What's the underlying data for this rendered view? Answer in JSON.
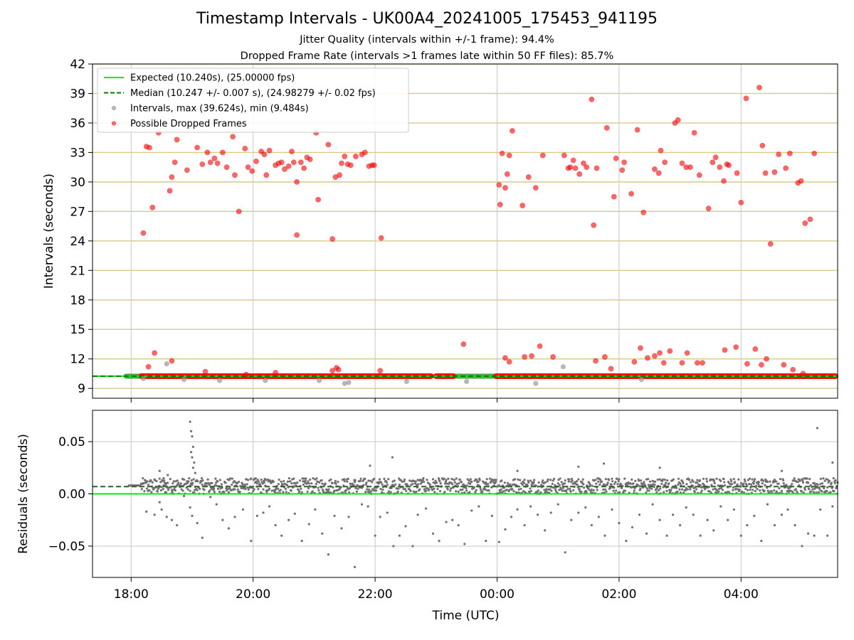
{
  "figure": {
    "title": "Timestamp Intervals - UK00A4_20241005_175453_941195",
    "subtitle_1": "Jitter Quality (intervals within +/-1 frame): 94.4%",
    "subtitle_2": "Dropped Frame Rate (intervals >1 frames late within 50 FF files): 85.7%"
  },
  "colors": {
    "expected": "#00ee00",
    "median": "#008000",
    "intervals": "#999999",
    "dropped": "#ff0000",
    "residual_points": "#707070",
    "hlines": "#d6c98a",
    "grid": "#c8c8c8"
  },
  "chart_data": [
    {
      "type": "scatter",
      "ylabel": "Intervals (seconds)",
      "ylim": [
        8.0,
        42.0
      ],
      "yticks": [
        9,
        12,
        15,
        18,
        21,
        24,
        27,
        30,
        33,
        36,
        39,
        42
      ],
      "x_range": [
        "17:22",
        "05:35"
      ],
      "xticks": [
        "18:00",
        "20:00",
        "22:00",
        "00:00",
        "02:00",
        "04:00"
      ],
      "grid": true,
      "legend_position": "upper left",
      "legend": [
        {
          "label": "Expected (10.240s), (25.00000 fps)",
          "style": "line"
        },
        {
          "label": "Median (10.247 +/- 0.007 s), (24.98279 +/- 0.02 fps)",
          "style": "dashed"
        },
        {
          "label": "Intervals, max (39.624s), min (9.484s)",
          "style": "marker-gray"
        },
        {
          "label": "Possible Dropped Frames",
          "style": "marker-red"
        }
      ],
      "expected": 10.24,
      "median": 10.247,
      "baseline_dropped_segments": [
        [
          "18:10",
          "22:55"
        ],
        [
          "23:00",
          "23:17"
        ],
        [
          "23:59",
          "05:33"
        ]
      ],
      "baseline_normal_segments": [
        [
          "17:55",
          "18:12"
        ],
        [
          "23:17",
          "23:58"
        ]
      ],
      "dropped_frames": [
        [
          "18:12",
          24.8
        ],
        [
          "18:15",
          33.6
        ],
        [
          "18:18",
          33.5
        ],
        [
          "18:21",
          27.4
        ],
        [
          "18:17",
          11.2
        ],
        [
          "18:23",
          12.6
        ],
        [
          "18:27",
          35.0
        ],
        [
          "18:38",
          29.1
        ],
        [
          "18:40",
          30.5
        ],
        [
          "18:43",
          32.0
        ],
        [
          "18:45",
          34.3
        ],
        [
          "18:40",
          11.8
        ],
        [
          "18:55",
          31.2
        ],
        [
          "19:05",
          33.5
        ],
        [
          "19:10",
          31.8
        ],
        [
          "19:15",
          33.0
        ],
        [
          "19:18",
          32.0
        ],
        [
          "19:22",
          32.4
        ],
        [
          "19:25",
          31.9
        ],
        [
          "19:30",
          33.0
        ],
        [
          "19:34",
          31.5
        ],
        [
          "19:40",
          34.6
        ],
        [
          "19:42",
          30.7
        ],
        [
          "19:46",
          27.0
        ],
        [
          "19:52",
          33.4
        ],
        [
          "19:55",
          31.5
        ],
        [
          "19:59",
          31.1
        ],
        [
          "20:03",
          32.1
        ],
        [
          "20:08",
          33.1
        ],
        [
          "20:11",
          32.8
        ],
        [
          "20:13",
          30.7
        ],
        [
          "20:16",
          33.2
        ],
        [
          "20:22",
          31.7
        ],
        [
          "20:25",
          31.9
        ],
        [
          "20:28",
          32.0
        ],
        [
          "20:31",
          31.3
        ],
        [
          "20:35",
          31.6
        ],
        [
          "20:38",
          33.1
        ],
        [
          "20:40",
          32.0
        ],
        [
          "20:43",
          30.0
        ],
        [
          "20:47",
          32.0
        ],
        [
          "20:50",
          31.4
        ],
        [
          "20:53",
          32.5
        ],
        [
          "20:56",
          32.3
        ],
        [
          "21:04",
          28.2
        ],
        [
          "21:02",
          35.0
        ],
        [
          "21:14",
          33.8
        ],
        [
          "21:21",
          30.5
        ],
        [
          "21:25",
          30.7
        ],
        [
          "21:27",
          31.9
        ],
        [
          "21:30",
          32.6
        ],
        [
          "21:33",
          31.8
        ],
        [
          "21:36",
          31.7
        ],
        [
          "21:41",
          32.6
        ],
        [
          "21:47",
          32.8
        ],
        [
          "21:50",
          33.0
        ],
        [
          "21:54",
          31.6
        ],
        [
          "21:57",
          31.7
        ],
        [
          "21:59",
          31.7
        ],
        [
          "22:06",
          24.3
        ],
        [
          "21:18",
          24.2
        ],
        [
          "19:13",
          10.7
        ],
        [
          "19:53",
          10.4
        ],
        [
          "20:22",
          10.6
        ],
        [
          "21:18",
          10.8
        ],
        [
          "21:22",
          11.1
        ],
        [
          "21:24",
          10.9
        ],
        [
          "22:05",
          10.8
        ],
        [
          "23:27",
          13.5
        ],
        [
          "20:43",
          24.6
        ],
        [
          "00:02",
          29.7
        ],
        [
          "00:03",
          27.7
        ],
        [
          "00:05",
          32.9
        ],
        [
          "00:08",
          29.4
        ],
        [
          "00:10",
          30.8
        ],
        [
          "00:12",
          32.7
        ],
        [
          "00:15",
          35.2
        ],
        [
          "00:25",
          27.6
        ],
        [
          "00:31",
          30.5
        ],
        [
          "00:38",
          29.4
        ],
        [
          "00:45",
          32.7
        ],
        [
          "01:06",
          32.7
        ],
        [
          "01:10",
          31.4
        ],
        [
          "01:12",
          31.5
        ],
        [
          "01:15",
          32.2
        ],
        [
          "01:17",
          31.4
        ],
        [
          "01:21",
          30.8
        ],
        [
          "01:25",
          31.9
        ],
        [
          "01:28",
          31.5
        ],
        [
          "01:33",
          38.4
        ],
        [
          "01:35",
          25.6
        ],
        [
          "01:38",
          31.4
        ],
        [
          "01:48",
          35.5
        ],
        [
          "01:55",
          28.5
        ],
        [
          "01:57",
          32.4
        ],
        [
          "02:03",
          31.2
        ],
        [
          "02:05",
          32.0
        ],
        [
          "02:12",
          28.8
        ],
        [
          "02:18",
          35.3
        ],
        [
          "02:24",
          26.9
        ],
        [
          "02:35",
          31.3
        ],
        [
          "02:39",
          30.9
        ],
        [
          "02:41",
          33.2
        ],
        [
          "02:45",
          32.0
        ],
        [
          "02:55",
          36.0
        ],
        [
          "02:58",
          36.3
        ],
        [
          "03:02",
          31.9
        ],
        [
          "03:06",
          31.5
        ],
        [
          "03:10",
          31.5
        ],
        [
          "03:14",
          35.0
        ],
        [
          "03:19",
          30.7
        ],
        [
          "03:28",
          27.3
        ],
        [
          "03:32",
          32.0
        ],
        [
          "03:35",
          32.5
        ],
        [
          "03:39",
          31.5
        ],
        [
          "03:43",
          30.1
        ],
        [
          "03:46",
          31.8
        ],
        [
          "03:48",
          31.7
        ],
        [
          "03:56",
          30.9
        ],
        [
          "04:00",
          27.9
        ],
        [
          "04:05",
          38.5
        ],
        [
          "04:18",
          39.6
        ],
        [
          "04:21",
          33.7
        ],
        [
          "04:24",
          30.9
        ],
        [
          "04:29",
          23.7
        ],
        [
          "04:33",
          31.0
        ],
        [
          "04:37",
          32.8
        ],
        [
          "04:44",
          31.4
        ],
        [
          "04:48",
          32.9
        ],
        [
          "04:56",
          29.9
        ],
        [
          "04:59",
          30.1
        ],
        [
          "05:12",
          32.9
        ],
        [
          "05:08",
          26.2
        ],
        [
          "05:03",
          25.8
        ],
        [
          "00:08",
          12.1
        ],
        [
          "00:12",
          11.7
        ],
        [
          "00:27",
          12.2
        ],
        [
          "00:34",
          12.3
        ],
        [
          "00:42",
          13.3
        ],
        [
          "00:55",
          12.2
        ],
        [
          "01:37",
          11.8
        ],
        [
          "01:46",
          12.2
        ],
        [
          "01:52",
          11.0
        ],
        [
          "02:15",
          11.7
        ],
        [
          "02:21",
          13.1
        ],
        [
          "02:28",
          12.1
        ],
        [
          "02:35",
          12.3
        ],
        [
          "02:40",
          12.6
        ],
        [
          "02:44",
          11.6
        ],
        [
          "02:50",
          12.8
        ],
        [
          "03:02",
          11.6
        ],
        [
          "03:07",
          12.6
        ],
        [
          "03:17",
          11.6
        ],
        [
          "03:22",
          11.6
        ],
        [
          "03:44",
          12.9
        ],
        [
          "03:55",
          13.2
        ],
        [
          "04:06",
          11.5
        ],
        [
          "04:14",
          13.0
        ],
        [
          "04:20",
          11.4
        ],
        [
          "04:25",
          12.0
        ],
        [
          "04:42",
          11.4
        ],
        [
          "04:51",
          10.9
        ],
        [
          "05:01",
          10.5
        ]
      ],
      "normal_outliers": [
        [
          "18:12",
          10.0
        ],
        [
          "18:35",
          11.5
        ],
        [
          "18:52",
          9.9
        ],
        [
          "19:27",
          9.8
        ],
        [
          "20:12",
          9.8
        ],
        [
          "21:05",
          9.8
        ],
        [
          "21:30",
          9.5
        ],
        [
          "21:34",
          9.6
        ],
        [
          "22:31",
          9.7
        ],
        [
          "23:30",
          9.7
        ],
        [
          "00:38",
          9.5
        ],
        [
          "01:05",
          11.2
        ],
        [
          "02:22",
          9.9
        ]
      ]
    },
    {
      "type": "scatter",
      "xlabel": "Time (UTC)",
      "ylabel": "Residuals (seconds)",
      "ylim": [
        -0.08,
        0.08
      ],
      "yticks": [
        -0.05,
        0.0,
        0.05
      ],
      "ytick_labels": [
        "−0.05",
        "0.00",
        "0.05"
      ],
      "expected_residual": 0.0,
      "median_residual": 0.007,
      "band": [
        0.0,
        0.015
      ],
      "outliers": [
        [
          "18:15",
          -0.017
        ],
        [
          "18:23",
          -0.02
        ],
        [
          "18:28",
          -0.008
        ],
        [
          "18:30",
          -0.015
        ],
        [
          "18:35",
          -0.022
        ],
        [
          "18:40",
          -0.025
        ],
        [
          "18:45",
          -0.03
        ],
        [
          "18:52",
          -0.002
        ],
        [
          "18:58",
          -0.013
        ],
        [
          "19:00",
          -0.021
        ],
        [
          "19:05",
          -0.028
        ],
        [
          "19:10",
          -0.042
        ],
        [
          "19:18",
          -0.003
        ],
        [
          "19:24",
          -0.01
        ],
        [
          "19:30",
          -0.025
        ],
        [
          "19:36",
          -0.033
        ],
        [
          "19:42",
          -0.022
        ],
        [
          "19:50",
          -0.015
        ],
        [
          "19:58",
          -0.045
        ],
        [
          "20:04",
          -0.021
        ],
        [
          "20:10",
          -0.018
        ],
        [
          "20:16",
          -0.012
        ],
        [
          "20:22",
          -0.03
        ],
        [
          "20:28",
          -0.04
        ],
        [
          "20:35",
          -0.025
        ],
        [
          "20:41",
          -0.019
        ],
        [
          "20:48",
          -0.045
        ],
        [
          "20:55",
          -0.029
        ],
        [
          "21:01",
          -0.015
        ],
        [
          "21:08",
          -0.038
        ],
        [
          "21:14",
          -0.058
        ],
        [
          "21:20",
          -0.021
        ],
        [
          "21:27",
          -0.033
        ],
        [
          "21:34",
          -0.022
        ],
        [
          "21:40",
          -0.07
        ],
        [
          "21:47",
          -0.01
        ],
        [
          "21:53",
          -0.012
        ],
        [
          "22:00",
          -0.04
        ],
        [
          "22:05",
          -0.022
        ],
        [
          "22:12",
          -0.018
        ],
        [
          "22:18",
          -0.05
        ],
        [
          "22:24",
          -0.04
        ],
        [
          "22:30",
          -0.031
        ],
        [
          "22:37",
          -0.05
        ],
        [
          "22:42",
          -0.02
        ],
        [
          "22:50",
          -0.014
        ],
        [
          "22:57",
          -0.038
        ],
        [
          "23:03",
          -0.045
        ],
        [
          "23:10",
          -0.027
        ],
        [
          "23:16",
          -0.025
        ],
        [
          "23:22",
          -0.03
        ],
        [
          "23:28",
          -0.048
        ],
        [
          "23:35",
          -0.016
        ],
        [
          "23:42",
          -0.012
        ],
        [
          "23:49",
          -0.045
        ],
        [
          "23:55",
          -0.021
        ],
        [
          "00:02",
          -0.046
        ],
        [
          "00:08",
          -0.034
        ],
        [
          "00:14",
          -0.022
        ],
        [
          "00:20",
          -0.015
        ],
        [
          "00:27",
          -0.03
        ],
        [
          "00:33",
          -0.012
        ],
        [
          "00:40",
          -0.02
        ],
        [
          "00:47",
          -0.035
        ],
        [
          "00:53",
          -0.018
        ],
        [
          "01:00",
          -0.01
        ],
        [
          "01:07",
          -0.056
        ],
        [
          "01:13",
          -0.025
        ],
        [
          "01:20",
          -0.018
        ],
        [
          "01:27",
          -0.013
        ],
        [
          "01:33",
          -0.03
        ],
        [
          "01:40",
          -0.022
        ],
        [
          "01:46",
          -0.04
        ],
        [
          "01:53",
          -0.015
        ],
        [
          "02:00",
          -0.028
        ],
        [
          "02:07",
          -0.045
        ],
        [
          "02:13",
          -0.032
        ],
        [
          "02:20",
          -0.02
        ],
        [
          "02:27",
          -0.038
        ],
        [
          "02:33",
          -0.01
        ],
        [
          "02:40",
          -0.025
        ],
        [
          "02:47",
          -0.04
        ],
        [
          "02:53",
          -0.02
        ],
        [
          "03:00",
          -0.03
        ],
        [
          "03:06",
          -0.013
        ],
        [
          "03:13",
          -0.02
        ],
        [
          "03:20",
          -0.04
        ],
        [
          "03:27",
          -0.025
        ],
        [
          "03:33",
          -0.035
        ],
        [
          "03:40",
          -0.012
        ],
        [
          "03:47",
          -0.025
        ],
        [
          "03:53",
          -0.015
        ],
        [
          "04:00",
          -0.04
        ],
        [
          "04:06",
          -0.03
        ],
        [
          "04:13",
          -0.021
        ],
        [
          "04:20",
          -0.045
        ],
        [
          "04:26",
          -0.01
        ],
        [
          "04:33",
          -0.03
        ],
        [
          "04:40",
          -0.02
        ],
        [
          "04:46",
          -0.015
        ],
        [
          "04:53",
          -0.03
        ],
        [
          "05:00",
          -0.05
        ],
        [
          "05:06",
          -0.038
        ],
        [
          "05:12",
          -0.04
        ],
        [
          "05:18",
          -0.015
        ],
        [
          "05:25",
          -0.04
        ],
        [
          "05:30",
          -0.012
        ],
        [
          "00:20",
          0.022
        ],
        [
          "01:20",
          0.026
        ],
        [
          "01:45",
          0.029
        ],
        [
          "02:40",
          0.025
        ],
        [
          "04:40",
          0.022
        ],
        [
          "05:15",
          0.063
        ],
        [
          "05:30",
          0.03
        ],
        [
          "22:17",
          0.035
        ],
        [
          "21:55",
          0.027
        ],
        [
          "18:28",
          0.022
        ],
        [
          "18:58",
          0.069
        ],
        [
          "18:59",
          0.06
        ],
        [
          "19:00",
          0.055
        ],
        [
          "19:01",
          0.045
        ],
        [
          "19:02",
          0.03
        ],
        [
          "18:59",
          0.04
        ],
        [
          "19:00",
          0.035
        ],
        [
          "19:01",
          0.025
        ],
        [
          "19:03",
          0.02
        ],
        [
          "18:32",
          0.015
        ],
        [
          "18:36",
          0.018
        ],
        [
          "18:42",
          0.012
        ]
      ]
    }
  ]
}
